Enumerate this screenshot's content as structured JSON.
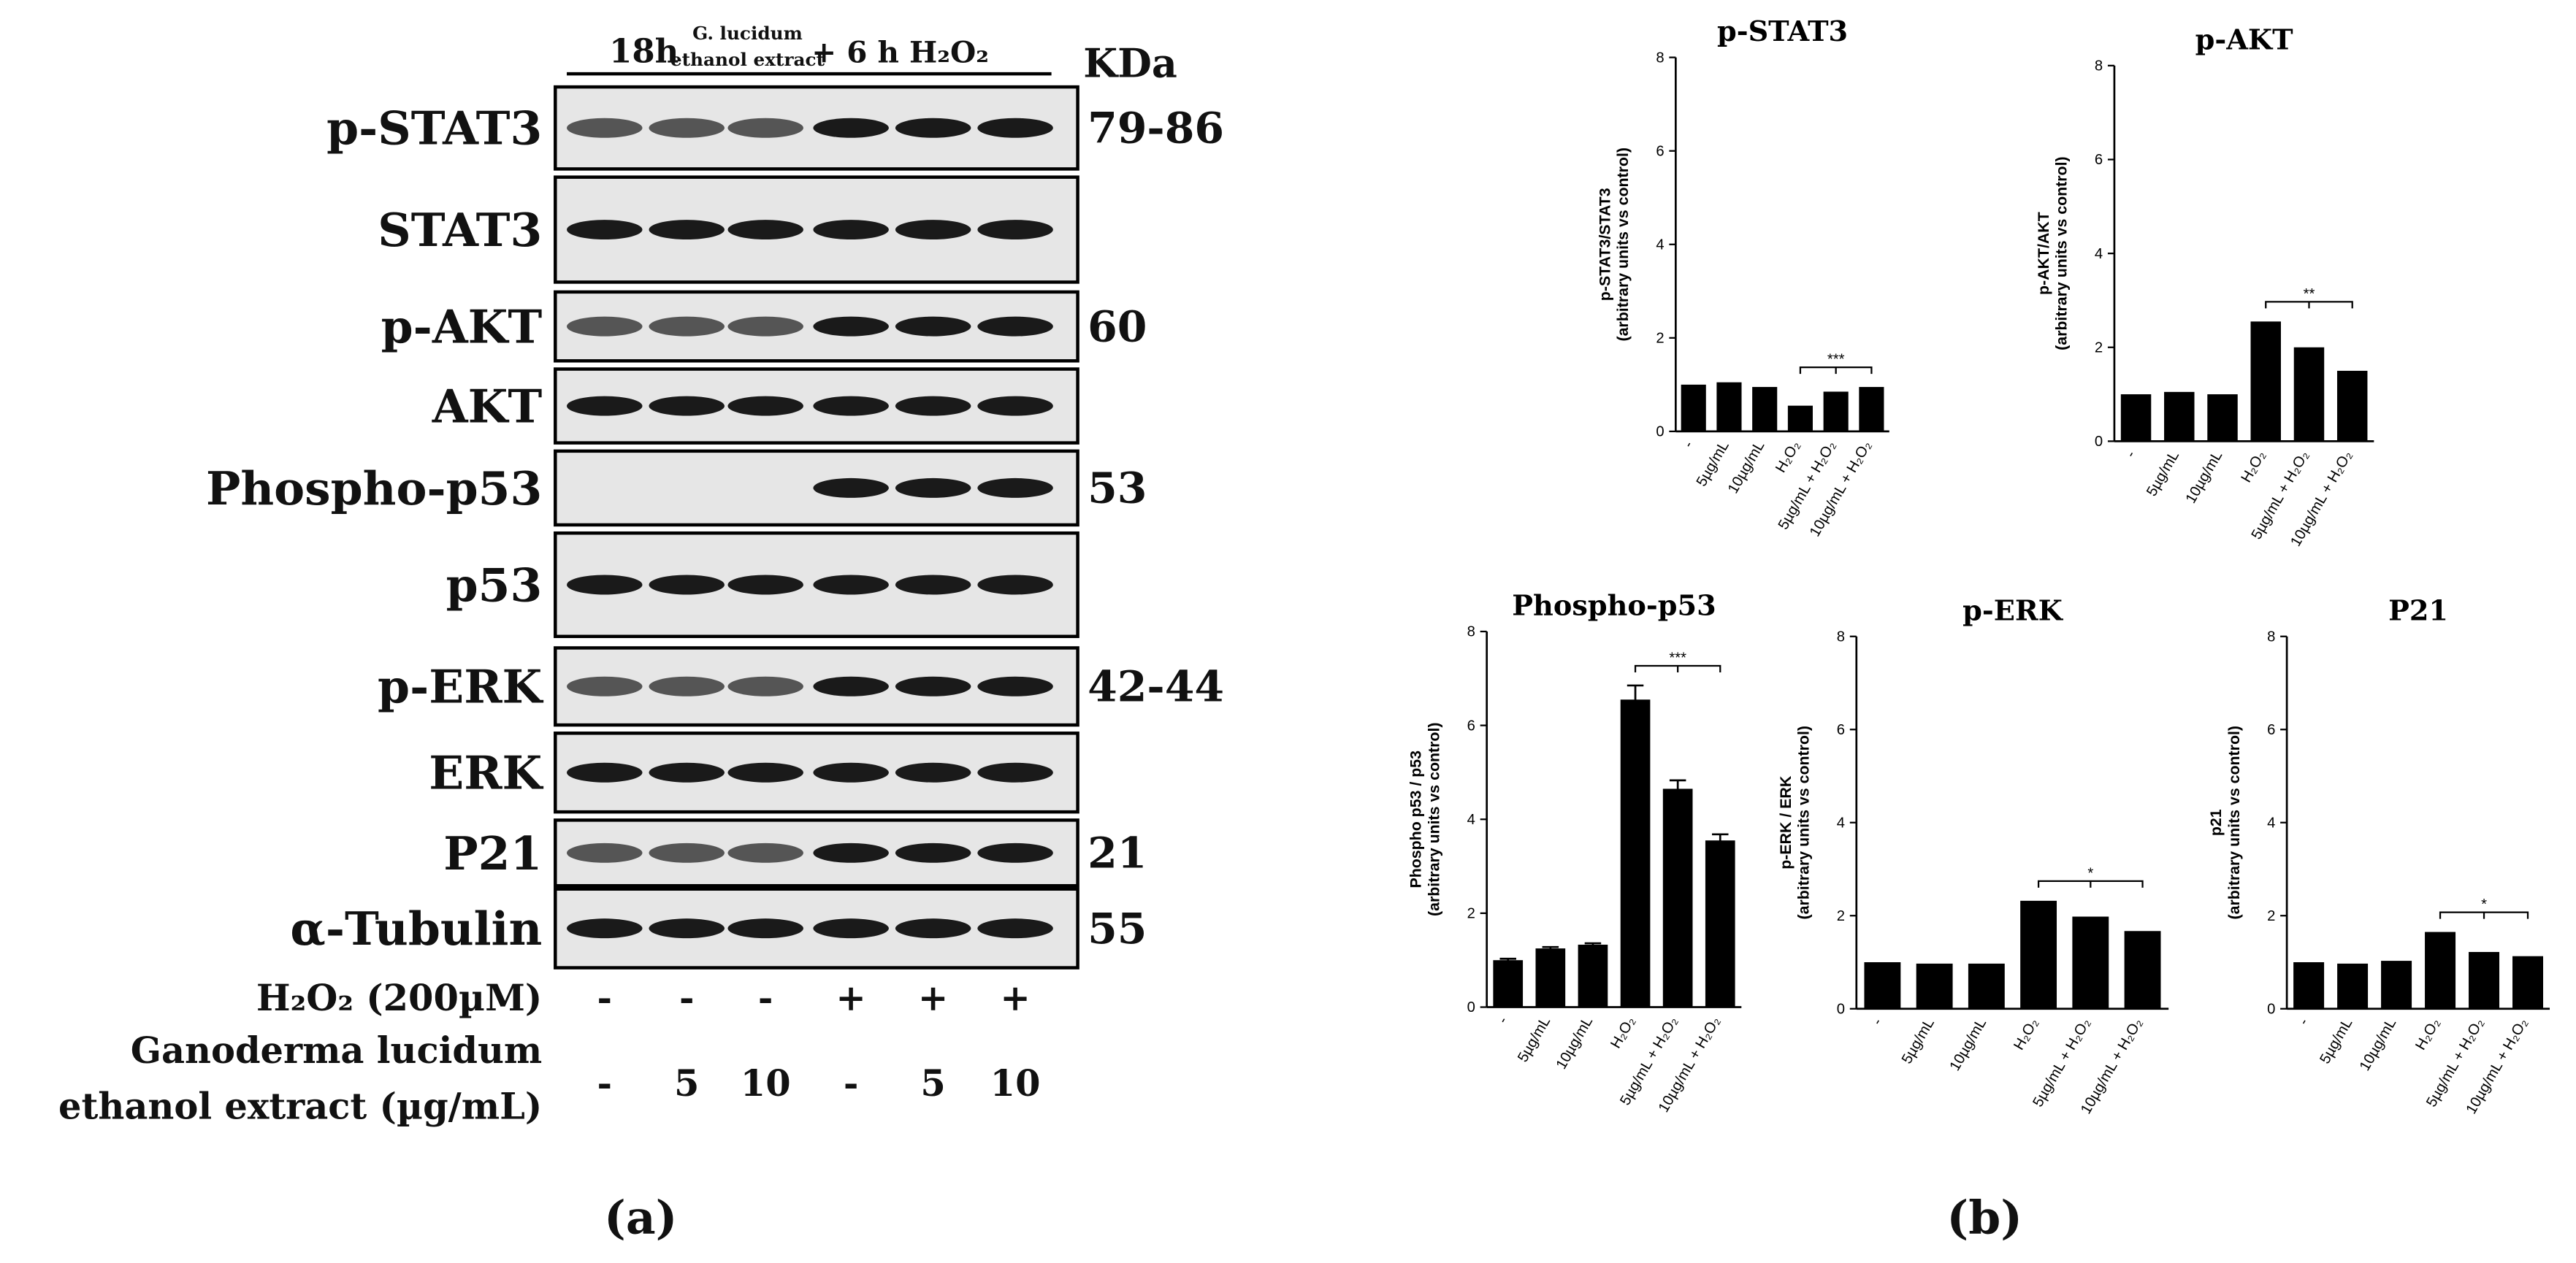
{
  "blot": {
    "header": {
      "time": "18h",
      "extract_line1": "G. lucidum",
      "extract_line2": "ethanol extract",
      "treatment": "+ 6 h H₂O₂",
      "unit": "KDa"
    },
    "rows": [
      {
        "label": "p-STAT3",
        "kda": "79-86"
      },
      {
        "label": "STAT3"
      },
      {
        "label": "p-AKT",
        "kda": "60"
      },
      {
        "label": "AKT"
      },
      {
        "label": "Phospho-p53",
        "kda": "53"
      },
      {
        "label": "p53"
      },
      {
        "label": "p-ERK",
        "kda": "42-44"
      },
      {
        "label": "ERK"
      },
      {
        "label": "P21",
        "kda": "21"
      },
      {
        "label": "α-Tubulin",
        "kda": "55"
      }
    ],
    "treatments": [
      {
        "label": "H₂O₂ (200µM)",
        "lanes": [
          "-",
          "-",
          "-",
          "+",
          "+",
          "+"
        ]
      },
      {
        "label": [
          "Ganoderma lucidum",
          "ethanol extract (µg/mL)"
        ],
        "lanes": [
          "-",
          "5",
          "10",
          "-",
          "5",
          "10"
        ]
      }
    ]
  },
  "panel_labels": [
    "(a)",
    "(b)"
  ],
  "chart_data": [
    {
      "type": "bar",
      "title": "p-STAT3",
      "ylabel": [
        "p-STAT3/STAT3",
        "(arbitrary units vs control)"
      ],
      "categories": [
        "-",
        "5µg/mL",
        "10µg/mL",
        "H₂O₂",
        "5µg/mL + H₂O₂",
        "10µg/mL + H₂O₂"
      ],
      "values": [
        1.0,
        1.05,
        0.95,
        0.55,
        0.85,
        0.95
      ],
      "color": "#000000",
      "ylim": [
        0,
        8
      ],
      "yticks": [
        0,
        2,
        4,
        6,
        8
      ],
      "annotation": "***"
    },
    {
      "type": "bar",
      "title": "p-AKT",
      "ylabel": [
        "p-AKT/AKT",
        "(arbitrary units vs control)"
      ],
      "categories": [
        "-",
        "5µg/mL",
        "10µg/mL",
        "H₂O₂",
        "5µg/mL + H₂O₂",
        "10µg/mL + H₂O₂"
      ],
      "values": [
        1.0,
        1.05,
        1.0,
        2.55,
        2.0,
        1.5
      ],
      "color": "#000000",
      "ylim": [
        0,
        8
      ],
      "yticks": [
        0,
        2,
        4,
        6,
        8
      ],
      "annotation": "**"
    },
    {
      "type": "bar",
      "title": "Phospho-p53",
      "ylabel": [
        "Phospho p53 / p53",
        "(arbitrary units vs control)"
      ],
      "categories": [
        "-",
        "5µg/mL",
        "10µg/mL",
        "H₂O₂",
        "5µg/mL + H₂O₂",
        "10µg/mL + H₂O₂"
      ],
      "values": [
        1.0,
        1.25,
        1.33,
        6.55,
        4.65,
        3.55
      ],
      "errors": [
        0.03,
        0.03,
        0.03,
        0.3,
        0.18,
        0.13
      ],
      "color": "#000000",
      "ylim": [
        0,
        8
      ],
      "yticks": [
        0,
        2,
        4,
        6,
        8
      ],
      "annotation": "***"
    },
    {
      "type": "bar",
      "title": "p-ERK",
      "ylabel": [
        "p-ERK / ERK",
        "(arbitrary units vs control)"
      ],
      "categories": [
        "-",
        "5µg/mL",
        "10µg/mL",
        "H₂O₂",
        "5µg/mL + H₂O₂",
        "10µg/mL + H₂O₂"
      ],
      "values": [
        1.0,
        0.97,
        0.97,
        2.32,
        1.98,
        1.67
      ],
      "color": "#000000",
      "ylim": [
        0,
        8
      ],
      "yticks": [
        0,
        2,
        4,
        6,
        8
      ],
      "annotation": "*"
    },
    {
      "type": "bar",
      "title": "P21",
      "ylabel": [
        "p21",
        "(arbitrary units vs control)"
      ],
      "categories": [
        "-",
        "5µg/mL",
        "10µg/mL",
        "H₂O₂",
        "5µg/mL + H₂O₂",
        "10µg/mL + H₂O₂"
      ],
      "values": [
        1.0,
        0.97,
        1.03,
        1.65,
        1.22,
        1.13
      ],
      "color": "#000000",
      "ylim": [
        0,
        8
      ],
      "yticks": [
        0,
        2,
        4,
        6,
        8
      ],
      "annotation": "*"
    }
  ]
}
